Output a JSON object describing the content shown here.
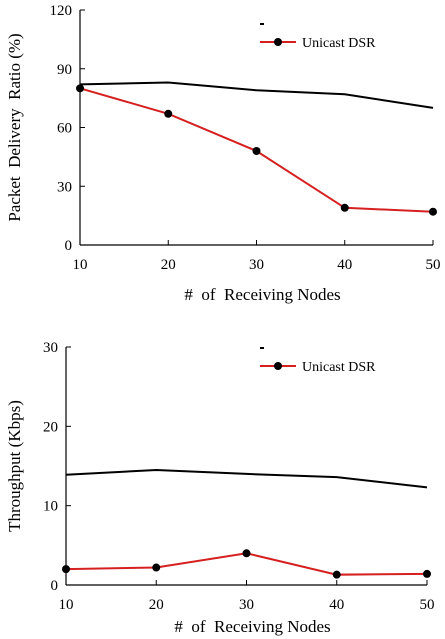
{
  "chart_data": [
    {
      "type": "line",
      "title": "",
      "xlabel": "#  of  Receiving Nodes",
      "ylabel": "Packet  Delivery  Ratio (%)",
      "x": [
        10,
        20,
        30,
        40,
        50
      ],
      "xlim": [
        10,
        50
      ],
      "ylim": [
        0,
        120
      ],
      "xticks": [
        "10",
        "20",
        "30",
        "40",
        "50"
      ],
      "yticks": [
        "0",
        "30",
        "60",
        "90",
        "120"
      ],
      "legend_position": "top-right",
      "series": [
        {
          "name": "",
          "color": "#000000",
          "marker": "none",
          "values": [
            82,
            83,
            79,
            77,
            70
          ]
        },
        {
          "name": "Unicast DSR",
          "color": "#d62020",
          "marker": "circle",
          "values": [
            80,
            67,
            48,
            19,
            17
          ]
        }
      ]
    },
    {
      "type": "line",
      "title": "",
      "xlabel": "#  of  Receiving Nodes",
      "ylabel": "Throughput (Kbps)",
      "x": [
        10,
        20,
        30,
        40,
        50
      ],
      "xlim": [
        10,
        50
      ],
      "ylim": [
        0,
        30
      ],
      "xticks": [
        "10",
        "20",
        "30",
        "40",
        "50"
      ],
      "yticks": [
        "0",
        "10",
        "20",
        "30"
      ],
      "legend_position": "top-right",
      "series": [
        {
          "name": "",
          "color": "#000000",
          "marker": "none",
          "values": [
            13.9,
            14.5,
            14.0,
            13.6,
            12.3
          ]
        },
        {
          "name": "Unicast DSR",
          "color": "#d62020",
          "marker": "circle",
          "values": [
            2.0,
            2.2,
            4.0,
            1.3,
            1.4
          ]
        }
      ]
    }
  ]
}
